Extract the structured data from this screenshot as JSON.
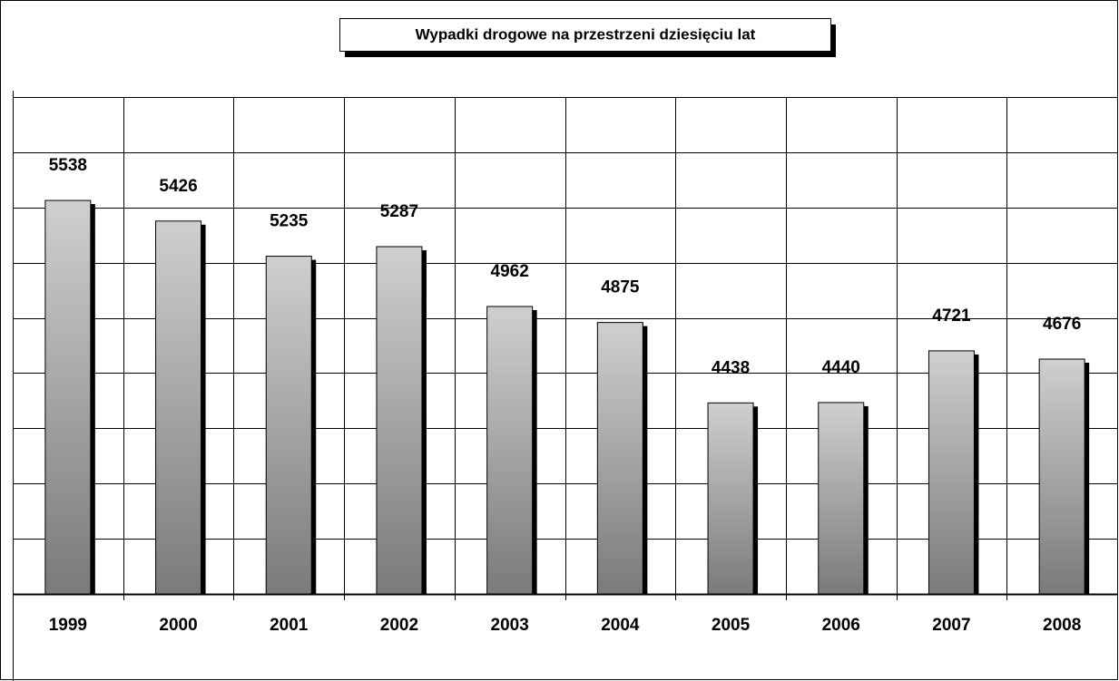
{
  "chart_data": {
    "type": "bar",
    "title": "Wypadki drogowe  na przestrzeni dziesięciu lat",
    "categories": [
      "1999",
      "2000",
      "2001",
      "2002",
      "2003",
      "2004",
      "2005",
      "2006",
      "2007",
      "2008"
    ],
    "values": [
      5538,
      5426,
      5235,
      5287,
      4962,
      4875,
      4438,
      4440,
      4721,
      4676
    ],
    "color": "#a0a0a0",
    "ylim": [
      3400,
      6100
    ],
    "yticks": [
      3400,
      3700,
      4000,
      4300,
      4600,
      4900,
      5200,
      5500,
      5800,
      6100
    ],
    "grid": true
  }
}
